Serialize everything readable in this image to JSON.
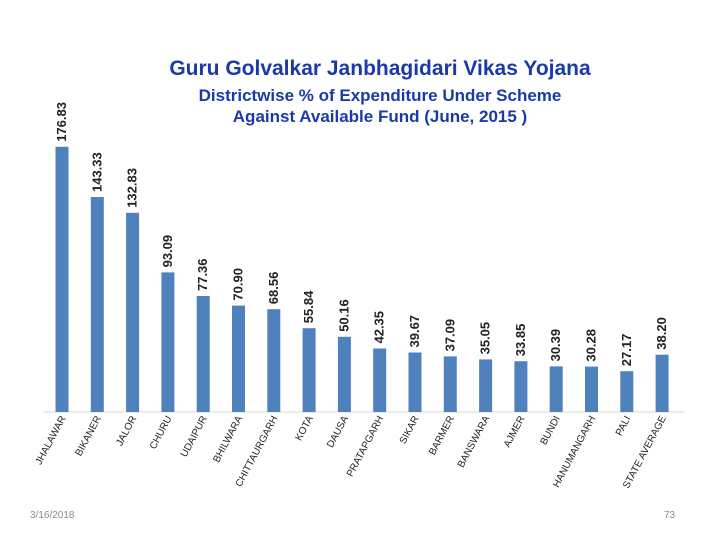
{
  "title": "Guru Golvalkar Janbhagidari Vikas Yojana",
  "subtitle_line1": "Districtwise % of Expenditure Under Scheme",
  "subtitle_line2": "Against Available Fund (June, 2015 )",
  "footer_date": "3/16/2018",
  "footer_page": "73",
  "colors": {
    "bar": "#4f81bd",
    "title": "#1a3aa8",
    "label": "#222222"
  },
  "chart_data": {
    "type": "bar",
    "title": "Guru Golvalkar Janbhagidari Vikas Yojana",
    "subtitle": "Districtwise % of Expenditure Under Scheme Against Available Fund (June, 2015 )",
    "xlabel": "",
    "ylabel": "",
    "ylim": [
      0,
      180
    ],
    "grid": false,
    "categories": [
      "JHALAWAR",
      "BIKANER",
      "JALOR",
      "CHURU",
      "UDAIPUR",
      "BHILWARA",
      "CHITTAURGARH",
      "KOTA",
      "DAUSA",
      "PRATAPGARH",
      "SIKAR",
      "BARMER",
      "BANSWARA",
      "AJMER",
      "BUNDI",
      "HANUMANGARH",
      "PALI",
      "STATE AVERAGE"
    ],
    "values": [
      176.83,
      143.33,
      132.83,
      93.09,
      77.36,
      70.9,
      68.56,
      55.84,
      50.16,
      42.35,
      39.67,
      37.09,
      35.05,
      33.85,
      30.39,
      30.28,
      27.17,
      38.2
    ],
    "labels": [
      "176.83",
      "143.33",
      "132.83",
      "93.09",
      "77.36",
      "70.90",
      "68.56",
      "55.84",
      "50.16",
      "42.35",
      "39.67",
      "37.09",
      "35.05",
      "33.85",
      "30.39",
      "30.28",
      "27.17",
      "38.20"
    ]
  }
}
